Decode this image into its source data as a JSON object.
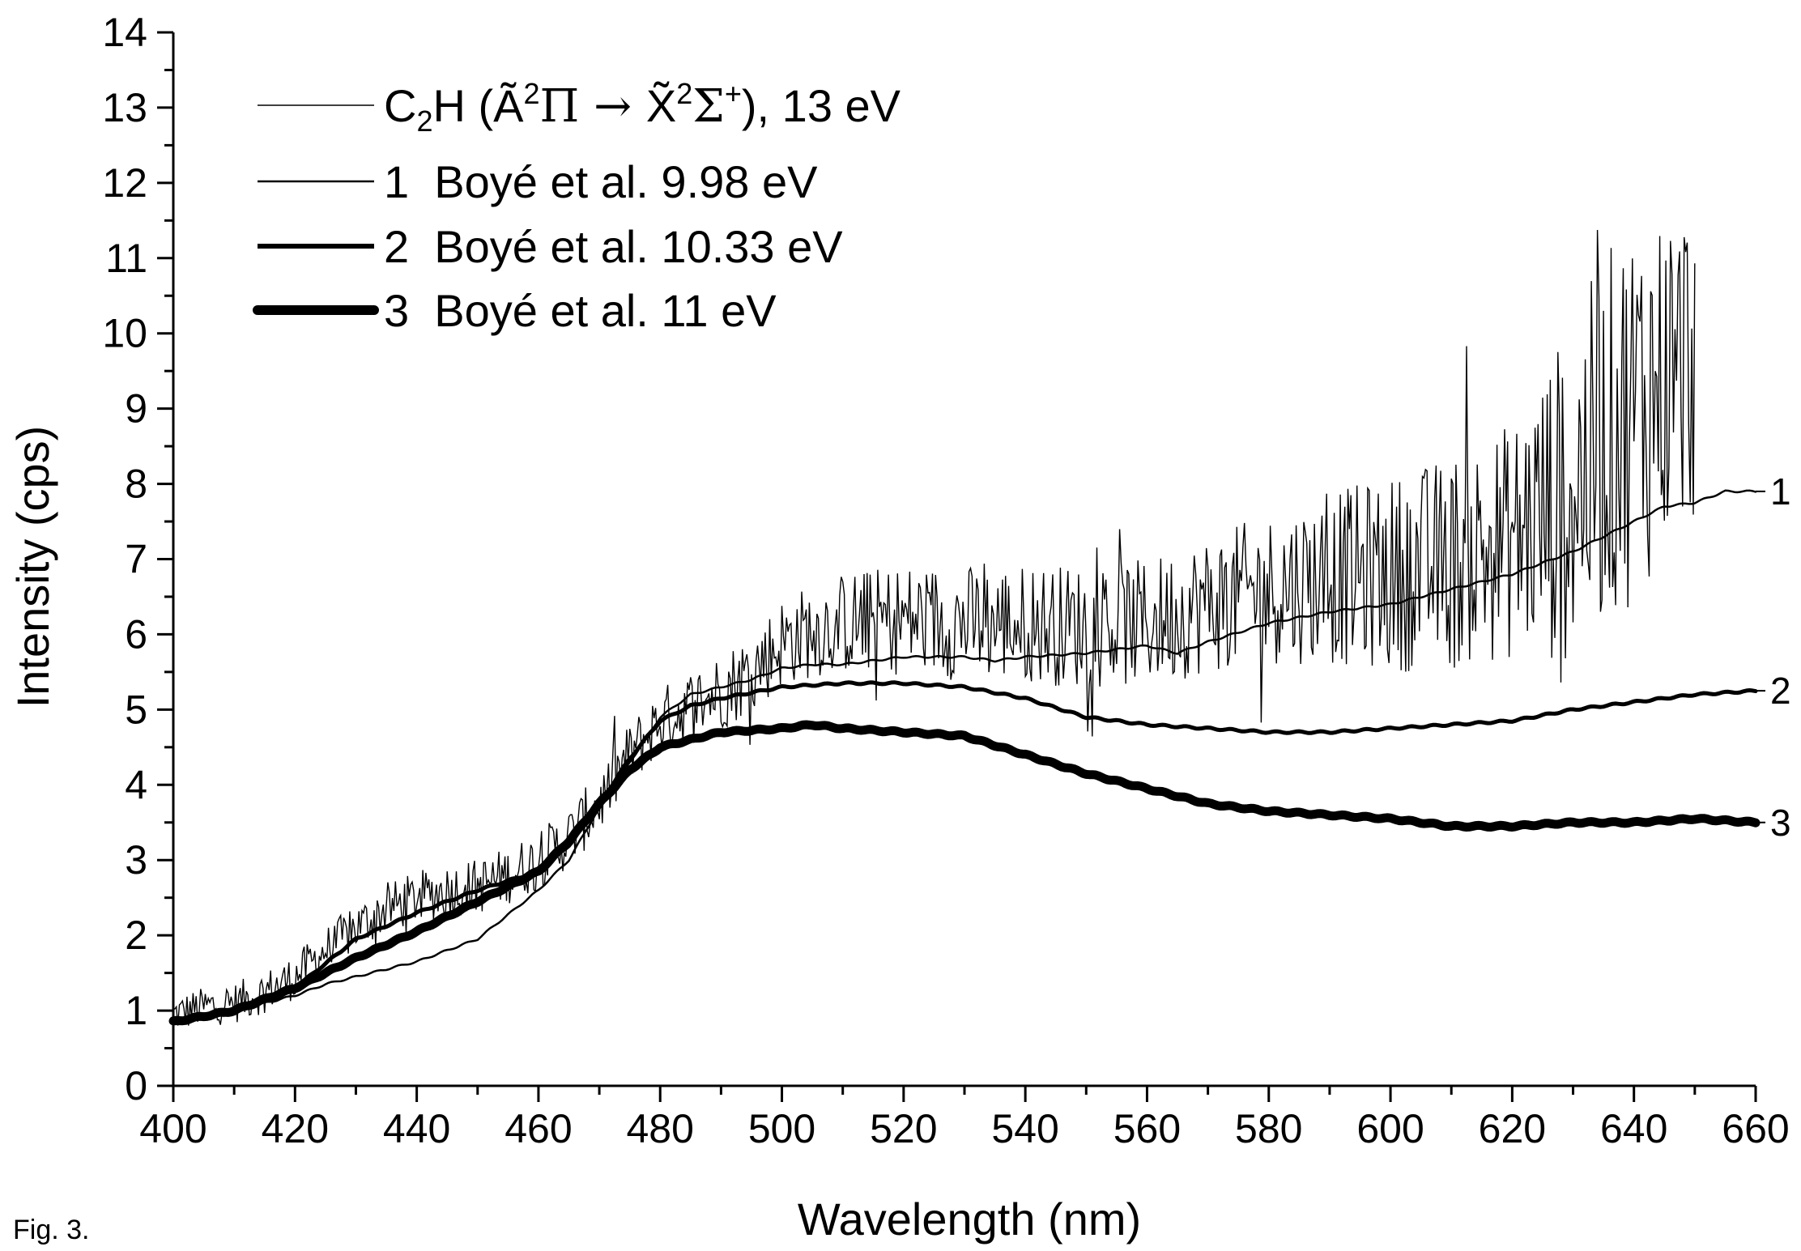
{
  "figure_caption": "Fig. 3.",
  "chart_data": {
    "type": "line",
    "xlabel": "Wavelength (nm)",
    "ylabel": "Intensity (cps)",
    "xlim": [
      400,
      660
    ],
    "ylim": [
      0,
      14
    ],
    "xticks": [
      400,
      420,
      440,
      460,
      480,
      500,
      520,
      540,
      560,
      580,
      600,
      620,
      640,
      660
    ],
    "yticks": [
      0,
      1,
      2,
      3,
      4,
      5,
      6,
      7,
      8,
      9,
      10,
      11,
      12,
      13,
      14
    ],
    "grid": false,
    "legend_position": "top-left",
    "series": [
      {
        "name": "C2H (Ã2Π → X̃2Σ+), 13 eV",
        "style": "noisy-thin",
        "x_end": 650,
        "points": [
          [
            400,
            0.95
          ],
          [
            405,
            1.05
          ],
          [
            410,
            1.1
          ],
          [
            415,
            1.25
          ],
          [
            420,
            1.45
          ],
          [
            425,
            1.8
          ],
          [
            430,
            2.1
          ],
          [
            435,
            2.35
          ],
          [
            440,
            2.5
          ],
          [
            445,
            2.6
          ],
          [
            450,
            2.65
          ],
          [
            455,
            2.8
          ],
          [
            460,
            3.0
          ],
          [
            465,
            3.3
          ],
          [
            470,
            3.75
          ],
          [
            475,
            4.4
          ],
          [
            480,
            4.85
          ],
          [
            485,
            5.05
          ],
          [
            490,
            5.25
          ],
          [
            495,
            5.5
          ],
          [
            500,
            5.9
          ],
          [
            505,
            6.05
          ],
          [
            510,
            6.15
          ],
          [
            520,
            6.2
          ],
          [
            530,
            6.15
          ],
          [
            540,
            6.15
          ],
          [
            550,
            6.1
          ],
          [
            560,
            6.15
          ],
          [
            570,
            6.4
          ],
          [
            580,
            6.6
          ],
          [
            590,
            6.75
          ],
          [
            600,
            6.8
          ],
          [
            610,
            6.95
          ],
          [
            620,
            7.25
          ],
          [
            630,
            7.9
          ],
          [
            635,
            8.6
          ],
          [
            640,
            9.0
          ],
          [
            645,
            9.4
          ],
          [
            650,
            9.7
          ]
        ],
        "noise": [
          [
            400,
            0.25
          ],
          [
            440,
            0.35
          ],
          [
            480,
            0.45
          ],
          [
            500,
            0.6
          ],
          [
            520,
            0.75
          ],
          [
            560,
            0.85
          ],
          [
            580,
            1.0
          ],
          [
            600,
            1.3
          ],
          [
            620,
            1.6
          ],
          [
            630,
            2.3
          ],
          [
            640,
            2.6
          ],
          [
            650,
            2.2
          ]
        ]
      },
      {
        "name": "1  Boyé et al. 9.98 eV",
        "label": "1",
        "width": 2.5,
        "points": [
          [
            400,
            0.9
          ],
          [
            410,
            1.0
          ],
          [
            415,
            1.1
          ],
          [
            420,
            1.2
          ],
          [
            425,
            1.35
          ],
          [
            430,
            1.45
          ],
          [
            440,
            1.65
          ],
          [
            450,
            1.95
          ],
          [
            460,
            2.6
          ],
          [
            465,
            3.0
          ],
          [
            470,
            3.7
          ],
          [
            475,
            4.3
          ],
          [
            480,
            4.9
          ],
          [
            485,
            5.2
          ],
          [
            490,
            5.3
          ],
          [
            495,
            5.4
          ],
          [
            500,
            5.55
          ],
          [
            505,
            5.6
          ],
          [
            510,
            5.6
          ],
          [
            515,
            5.65
          ],
          [
            520,
            5.7
          ],
          [
            530,
            5.7
          ],
          [
            535,
            5.65
          ],
          [
            540,
            5.7
          ],
          [
            550,
            5.75
          ],
          [
            560,
            5.85
          ],
          [
            565,
            5.75
          ],
          [
            570,
            5.9
          ],
          [
            580,
            6.15
          ],
          [
            590,
            6.3
          ],
          [
            600,
            6.4
          ],
          [
            610,
            6.6
          ],
          [
            620,
            6.8
          ],
          [
            630,
            7.1
          ],
          [
            640,
            7.5
          ],
          [
            645,
            7.7
          ],
          [
            650,
            7.75
          ],
          [
            655,
            7.9
          ],
          [
            660,
            7.9
          ]
        ]
      },
      {
        "name": "2  Boyé et al. 10.33 eV",
        "label": "2",
        "width": 5,
        "points": [
          [
            400,
            0.85
          ],
          [
            410,
            1.0
          ],
          [
            420,
            1.3
          ],
          [
            430,
            1.95
          ],
          [
            440,
            2.3
          ],
          [
            450,
            2.6
          ],
          [
            460,
            2.85
          ],
          [
            465,
            3.2
          ],
          [
            470,
            3.75
          ],
          [
            475,
            4.35
          ],
          [
            480,
            4.85
          ],
          [
            485,
            5.05
          ],
          [
            490,
            5.15
          ],
          [
            500,
            5.3
          ],
          [
            510,
            5.35
          ],
          [
            520,
            5.35
          ],
          [
            530,
            5.3
          ],
          [
            540,
            5.15
          ],
          [
            550,
            4.9
          ],
          [
            560,
            4.8
          ],
          [
            570,
            4.75
          ],
          [
            580,
            4.7
          ],
          [
            590,
            4.7
          ],
          [
            600,
            4.75
          ],
          [
            610,
            4.8
          ],
          [
            620,
            4.85
          ],
          [
            630,
            5.0
          ],
          [
            640,
            5.1
          ],
          [
            650,
            5.2
          ],
          [
            660,
            5.25
          ]
        ]
      },
      {
        "name": "3  Boyé et al. 11 eV",
        "label": "3",
        "width": 11,
        "points": [
          [
            400,
            0.85
          ],
          [
            410,
            1.0
          ],
          [
            420,
            1.3
          ],
          [
            430,
            1.7
          ],
          [
            440,
            2.05
          ],
          [
            450,
            2.45
          ],
          [
            460,
            2.85
          ],
          [
            465,
            3.25
          ],
          [
            470,
            3.75
          ],
          [
            475,
            4.2
          ],
          [
            480,
            4.5
          ],
          [
            490,
            4.7
          ],
          [
            500,
            4.75
          ],
          [
            505,
            4.8
          ],
          [
            510,
            4.75
          ],
          [
            520,
            4.7
          ],
          [
            530,
            4.65
          ],
          [
            540,
            4.4
          ],
          [
            550,
            4.15
          ],
          [
            560,
            3.95
          ],
          [
            570,
            3.75
          ],
          [
            580,
            3.65
          ],
          [
            590,
            3.6
          ],
          [
            600,
            3.55
          ],
          [
            610,
            3.45
          ],
          [
            620,
            3.45
          ],
          [
            630,
            3.5
          ],
          [
            640,
            3.5
          ],
          [
            650,
            3.55
          ],
          [
            660,
            3.5
          ]
        ]
      }
    ]
  },
  "legend": {
    "c2h_prefix": "C",
    "c2h_sub": "2",
    "c2h_h": "H (",
    "a_sym": "Ã",
    "a_sup": "2",
    "pi": "Π → ",
    "x_sym": "X̃",
    "x_sup": "2",
    "sigma": "Σ",
    "sigma_sup": "+",
    "c2h_tail": "), 13 eV"
  }
}
